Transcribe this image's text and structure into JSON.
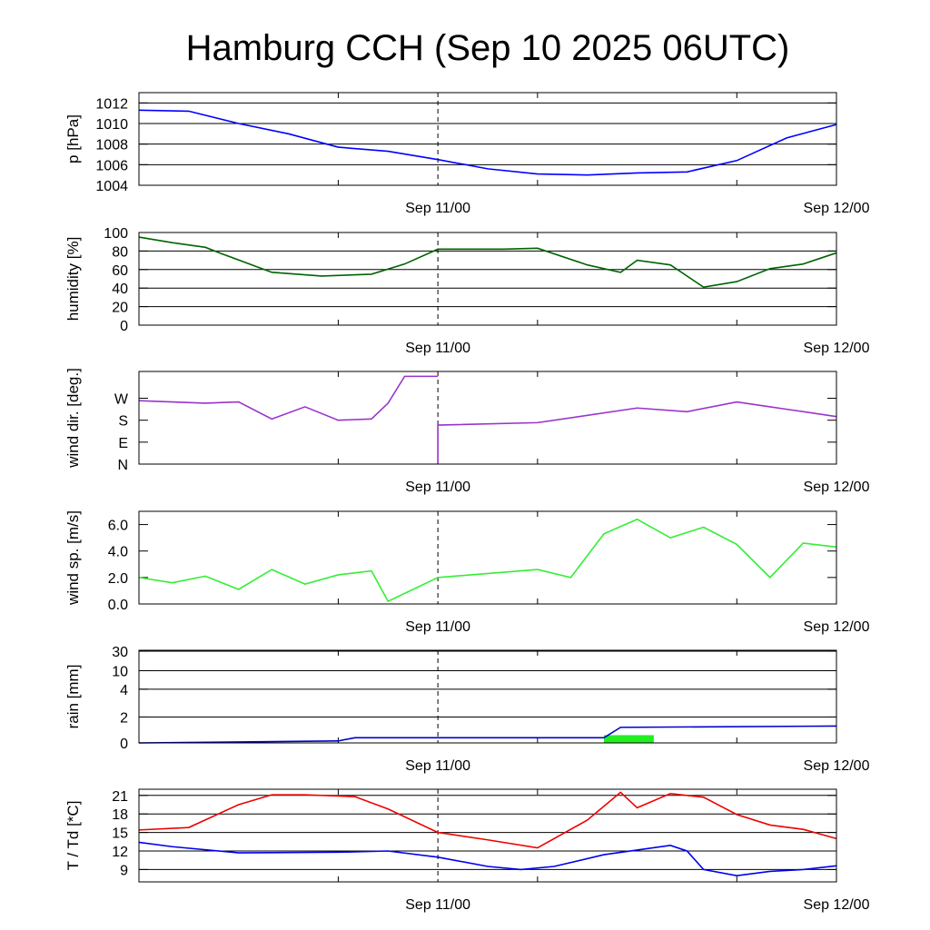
{
  "chart_data": {
    "title": "Hamburg CCH (Sep 10 2025 06UTC)",
    "x_axis": {
      "type": "time",
      "start": "Sep 10 06UTC",
      "end": "Sep 12 00UTC",
      "tick_labels": [
        "Sep 11/00",
        "Sep 12/00"
      ],
      "dashed_marker": "Sep 11/00"
    },
    "panels": [
      {
        "id": "pressure",
        "type": "line",
        "ylabel": "p [hPa]",
        "ylim": [
          1004,
          1013
        ],
        "yticks": [
          1004,
          1006,
          1008,
          1010,
          1012
        ],
        "yticklabels": [
          "1004",
          "1006",
          "1008",
          "1010",
          "1012"
        ],
        "grid": true,
        "color": "#0000ff",
        "series": [
          {
            "x": [
              "Sep 10 06UTC",
              "Sep 10 09UTC",
              "Sep 10 12UTC",
              "Sep 10 15UTC",
              "Sep 10 18UTC",
              "Sep 10 21UTC",
              "Sep 11 00UTC",
              "Sep 11 03UTC",
              "Sep 11 06UTC",
              "Sep 11 09UTC",
              "Sep 11 12UTC",
              "Sep 11 15UTC",
              "Sep 11 18UTC",
              "Sep 11 21UTC",
              "Sep 12 00UTC"
            ],
            "values": [
              1011.3,
              1011.2,
              1010.0,
              1009.0,
              1007.7,
              1007.3,
              1006.5,
              1005.6,
              1005.1,
              1005.0,
              1005.2,
              1005.3,
              1006.4,
              1008.6,
              1009.9
            ]
          }
        ]
      },
      {
        "id": "humidity",
        "type": "line",
        "ylabel": "humidity [%]",
        "ylim": [
          0,
          100
        ],
        "yticks": [
          0,
          20,
          40,
          60,
          80,
          100
        ],
        "yticklabels": [
          "0",
          "20",
          "40",
          "60",
          "80",
          "100"
        ],
        "grid": true,
        "color": "#006400",
        "series": [
          {
            "x": [
              "Sep 10 06UTC",
              "Sep 10 08UTC",
              "Sep 10 10UTC",
              "Sep 10 11UTC",
              "Sep 10 14UTC",
              "Sep 10 17UTC",
              "Sep 10 20UTC",
              "Sep 10 22UTC",
              "Sep 11 00UTC",
              "Sep 11 04UTC",
              "Sep 11 06UTC",
              "Sep 11 09UTC",
              "Sep 11 11UTC",
              "Sep 11 12UTC",
              "Sep 11 14UTC",
              "Sep 11 16UTC",
              "Sep 11 18UTC",
              "Sep 11 20UTC",
              "Sep 11 22UTC",
              "Sep 12 00UTC"
            ],
            "values": [
              95,
              89,
              84,
              77,
              57,
              53,
              55,
              66,
              82,
              82,
              83,
              65,
              57,
              70,
              65,
              41,
              47,
              61,
              66,
              78
            ]
          }
        ]
      },
      {
        "id": "wind_direction",
        "type": "line",
        "ylabel": "wind dir. [deg.]",
        "ylim": [
          0,
          380
        ],
        "yticks": [
          0,
          90,
          180,
          270
        ],
        "yticklabels": [
          "N",
          "E",
          "S",
          "W"
        ],
        "grid": false,
        "color": "#9933cc",
        "series": [
          {
            "x": [
              "Sep 10 06UTC",
              "Sep 10 10UTC",
              "Sep 10 12UTC",
              "Sep 10 14UTC",
              "Sep 10 16UTC",
              "Sep 10 18UTC",
              "Sep 10 20UTC",
              "Sep 10 21UTC",
              "Sep 10 22UTC",
              "Sep 11 00UTC",
              "Sep 11 06UTC",
              "Sep 11 12UTC",
              "Sep 11 15UTC",
              "Sep 11 18UTC",
              "Sep 11 20UTC",
              "Sep 11 21UTC",
              "Sep 12 00UTC"
            ],
            "values": [
              260,
              250,
              255,
              185,
              235,
              180,
              185,
              250,
              360,
              160,
              170,
              230,
              215,
              255,
              235,
              225,
              195
            ]
          }
        ]
      },
      {
        "id": "wind_speed",
        "type": "line",
        "ylabel": "wind sp. [m/s]",
        "ylim": [
          0,
          7
        ],
        "yticks": [
          0,
          2,
          4,
          6
        ],
        "yticklabels": [
          "0.0",
          "2.0",
          "4.0",
          "6.0"
        ],
        "grid": false,
        "color": "#33ee33",
        "series": [
          {
            "x": [
              "Sep 10 06UTC",
              "Sep 10 08UTC",
              "Sep 10 10UTC",
              "Sep 10 12UTC",
              "Sep 10 14UTC",
              "Sep 10 16UTC",
              "Sep 10 18UTC",
              "Sep 10 20UTC",
              "Sep 10 21UTC",
              "Sep 11 00UTC",
              "Sep 11 06UTC",
              "Sep 11 08UTC",
              "Sep 11 10UTC",
              "Sep 11 12UTC",
              "Sep 11 14UTC",
              "Sep 11 16UTC",
              "Sep 11 18UTC",
              "Sep 11 20UTC",
              "Sep 11 22UTC",
              "Sep 12 00UTC"
            ],
            "values": [
              2.0,
              1.6,
              2.1,
              1.1,
              2.6,
              1.5,
              2.2,
              2.5,
              0.2,
              2.0,
              2.6,
              2.0,
              5.3,
              6.4,
              5.0,
              5.8,
              4.5,
              2.0,
              4.6,
              4.3
            ]
          }
        ]
      },
      {
        "id": "rain",
        "type": "line",
        "ylabel": "rain [mm]",
        "yticks": [
          0,
          2,
          4,
          10,
          30
        ],
        "yticklabels": [
          "0",
          "2",
          "4",
          "10",
          "30"
        ],
        "scale": "nonlinear",
        "grid": true,
        "color": "#0000cc",
        "series": [
          {
            "x": [
              "Sep 10 06UTC",
              "Sep 10 18UTC",
              "Sep 10 19UTC",
              "Sep 11 10UTC",
              "Sep 11 11UTC",
              "Sep 12 00UTC"
            ],
            "values": [
              0,
              0.15,
              0.4,
              0.4,
              1.2,
              1.3
            ]
          }
        ],
        "bars": [
          {
            "x_start": "Sep 11 10UTC",
            "x_end": "Sep 11 13UTC",
            "value": 0.6,
            "color": "#22ee22"
          }
        ]
      },
      {
        "id": "temperature",
        "type": "line",
        "ylabel": "T / Td [*C]",
        "ylim": [
          7,
          22
        ],
        "yticks": [
          9,
          12,
          15,
          18,
          21
        ],
        "yticklabels": [
          "9",
          "12",
          "15",
          "18",
          "21"
        ],
        "grid": true,
        "series": [
          {
            "color": "#ee0000",
            "x": [
              "Sep 10 06UTC",
              "Sep 10 09UTC",
              "Sep 10 12UTC",
              "Sep 10 14UTC",
              "Sep 10 16UTC",
              "Sep 10 19UTC",
              "Sep 10 21UTC",
              "Sep 11 00UTC",
              "Sep 11 03UTC",
              "Sep 11 06UTC",
              "Sep 11 09UTC",
              "Sep 11 11UTC",
              "Sep 11 12UTC",
              "Sep 11 14UTC",
              "Sep 11 16UTC",
              "Sep 11 18UTC",
              "Sep 11 20UTC",
              "Sep 11 22UTC",
              "Sep 12 00UTC"
            ],
            "values": [
              15.4,
              15.8,
              19.5,
              21.1,
              21.1,
              20.8,
              18.8,
              15.0,
              13.8,
              12.5,
              17.0,
              21.5,
              19.0,
              21.3,
              20.7,
              17.9,
              16.2,
              15.5,
              14.0
            ]
          },
          {
            "color": "#0000ee",
            "x": [
              "Sep 10 06UTC",
              "Sep 10 08UTC",
              "Sep 10 12UTC",
              "Sep 10 18UTC",
              "Sep 10 21UTC",
              "Sep 11 00UTC",
              "Sep 11 03UTC",
              "Sep 11 05UTC",
              "Sep 11 07UTC",
              "Sep 11 10UTC",
              "Sep 11 14UTC",
              "Sep 11 15UTC",
              "Sep 11 16UTC",
              "Sep 11 18UTC",
              "Sep 11 20UTC",
              "Sep 11 22UTC",
              "Sep 12 00UTC"
            ],
            "values": [
              13.4,
              12.7,
              11.7,
              11.8,
              12.0,
              11.0,
              9.5,
              9.0,
              9.5,
              11.4,
              12.9,
              12.0,
              9.0,
              8.0,
              8.7,
              9.0,
              9.6
            ]
          }
        ]
      }
    ]
  }
}
